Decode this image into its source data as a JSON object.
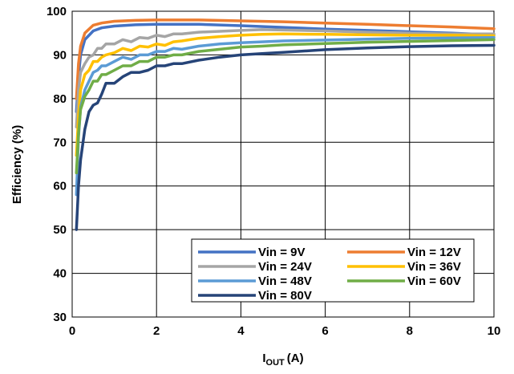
{
  "chart_data": {
    "type": "line",
    "xlabel_main": "I",
    "xlabel_sub": "OUT",
    "xlabel_unit": "(A)",
    "ylabel": "Efficiency (%)",
    "xlim": [
      0,
      10
    ],
    "ylim": [
      30,
      100
    ],
    "x_ticks": [
      "0",
      "2",
      "4",
      "6",
      "8",
      "10"
    ],
    "y_ticks": [
      "30",
      "40",
      "50",
      "60",
      "70",
      "80",
      "90",
      "100"
    ],
    "grid": true,
    "legend_placement": "bottom-right",
    "series": [
      {
        "name": "Vin = 9V",
        "color": "#4472C4",
        "x": [
          0.1,
          0.15,
          0.2,
          0.3,
          0.5,
          0.7,
          1.0,
          1.5,
          2,
          3,
          4,
          5,
          6,
          7,
          8,
          9,
          10
        ],
        "y": [
          77,
          85,
          90,
          93.5,
          95.5,
          96.2,
          96.6,
          96.9,
          97.0,
          97.0,
          96.7,
          96.3,
          95.9,
          95.6,
          95.3,
          95.0,
          94.6
        ]
      },
      {
        "name": "Vin = 12V",
        "color": "#ED7D31",
        "x": [
          0.1,
          0.15,
          0.2,
          0.3,
          0.5,
          0.7,
          1.0,
          1.5,
          2,
          3,
          4,
          5,
          6,
          7,
          8,
          9,
          10
        ],
        "y": [
          80,
          88,
          92,
          95,
          96.8,
          97.3,
          97.7,
          97.9,
          98.0,
          98.0,
          97.8,
          97.6,
          97.3,
          97.0,
          96.7,
          96.4,
          96.0
        ]
      },
      {
        "name": "Vin = 24V",
        "color": "#A5A5A5",
        "x": [
          0.1,
          0.15,
          0.2,
          0.3,
          0.4,
          0.5,
          0.6,
          0.7,
          0.8,
          1.0,
          1.2,
          1.4,
          1.6,
          1.8,
          2.0,
          2.2,
          2.4,
          2.6,
          3.0,
          3.5,
          4.0,
          4.5,
          5,
          6,
          7,
          8,
          9,
          10
        ],
        "y": [
          73.5,
          82,
          86,
          88,
          89.5,
          90,
          91.5,
          91.5,
          92.5,
          92.5,
          93.5,
          93,
          94,
          93.8,
          94.5,
          94.2,
          94.8,
          94.8,
          95.2,
          95.4,
          95.6,
          95.8,
          95.7,
          95.5,
          95.2,
          95.0,
          94.8,
          94.8
        ]
      },
      {
        "name": "Vin = 36V",
        "color": "#FFC000",
        "x": [
          0.1,
          0.15,
          0.2,
          0.3,
          0.4,
          0.5,
          0.6,
          0.7,
          0.8,
          1.0,
          1.2,
          1.4,
          1.6,
          1.8,
          2.0,
          2.2,
          2.4,
          2.6,
          3.0,
          3.5,
          4.0,
          4.5,
          5,
          6,
          7,
          8,
          9,
          10
        ],
        "y": [
          67,
          76,
          82,
          85.5,
          86.5,
          88.5,
          88.5,
          89.5,
          90,
          90.5,
          91.5,
          91,
          92,
          91.8,
          92.5,
          92.2,
          93,
          93.2,
          93.8,
          94.2,
          94.5,
          94.7,
          94.8,
          94.7,
          94.6,
          94.5,
          94.5,
          94.4
        ]
      },
      {
        "name": "Vin = 48V",
        "color": "#5B9BD5",
        "x": [
          0.1,
          0.15,
          0.2,
          0.3,
          0.4,
          0.5,
          0.6,
          0.7,
          0.8,
          1.0,
          1.2,
          1.4,
          1.6,
          1.8,
          2.0,
          2.2,
          2.4,
          2.6,
          3.0,
          3.5,
          4.0,
          4.5,
          5,
          6,
          7,
          8,
          9,
          10
        ],
        "y": [
          58,
          71,
          78,
          82,
          84,
          86,
          86.5,
          87.5,
          87.5,
          88.5,
          89.5,
          89,
          90,
          90,
          90.8,
          90.8,
          91.5,
          91.3,
          92,
          92.5,
          92.8,
          93,
          93.2,
          93.4,
          93.6,
          93.8,
          93.9,
          94.0
        ]
      },
      {
        "name": "Vin = 60V",
        "color": "#70AD47",
        "x": [
          0.1,
          0.15,
          0.2,
          0.3,
          0.4,
          0.5,
          0.6,
          0.7,
          0.8,
          1.0,
          1.2,
          1.4,
          1.6,
          1.8,
          2.0,
          2.2,
          2.4,
          2.6,
          3.0,
          3.5,
          4.0,
          4.5,
          5,
          6,
          7,
          8,
          9,
          10
        ],
        "y": [
          63,
          72,
          77.5,
          80.5,
          82,
          84,
          84,
          85.5,
          85.5,
          86.5,
          87.5,
          87.5,
          88.5,
          88.5,
          89.5,
          89.5,
          90,
          90,
          90.8,
          91.3,
          91.8,
          92,
          92.3,
          92.6,
          92.9,
          93.1,
          93.3,
          93.5
        ]
      },
      {
        "name": "Vin = 80V",
        "color": "#264478",
        "x": [
          0.1,
          0.15,
          0.2,
          0.3,
          0.4,
          0.5,
          0.6,
          0.7,
          0.8,
          1.0,
          1.2,
          1.4,
          1.6,
          1.8,
          2.0,
          2.2,
          2.4,
          2.6,
          3.0,
          3.5,
          4.0,
          4.5,
          5,
          6,
          7,
          8,
          9,
          10
        ],
        "y": [
          50,
          60,
          66,
          73,
          77,
          78.5,
          79,
          81,
          83.5,
          83.5,
          85,
          86,
          86,
          86.5,
          87.5,
          87.5,
          88,
          88,
          88.8,
          89.5,
          90,
          90.3,
          90.6,
          91.2,
          91.6,
          91.9,
          92.1,
          92.2
        ]
      }
    ]
  }
}
